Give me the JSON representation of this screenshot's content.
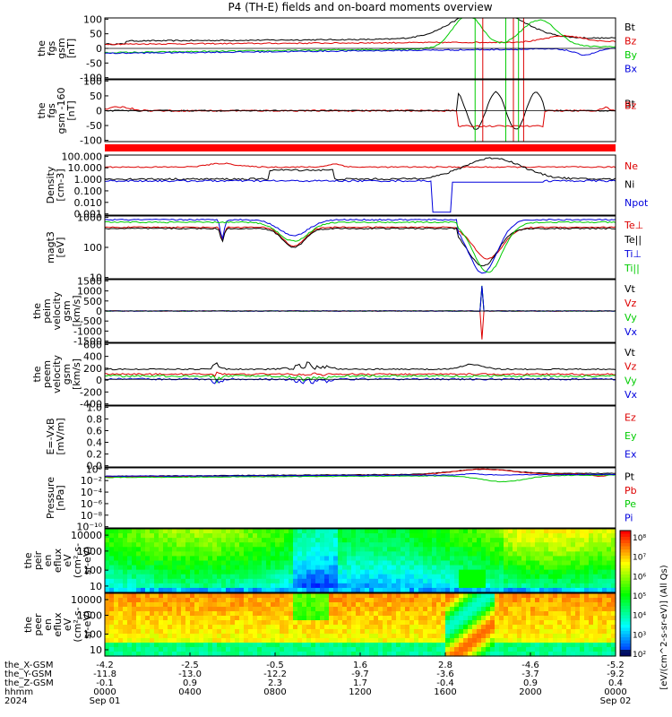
{
  "title": "P4 (TH-E) fields and on-board moments overview",
  "colors": {
    "black": "#000000",
    "red": "#dd0000",
    "green": "#00cc00",
    "blue": "#0000dd"
  },
  "chart_data": [
    {
      "type": "line",
      "id": "fgs_gsm",
      "ylabel": [
        "the",
        "fgs",
        "gsm",
        "[nT]"
      ],
      "yticks": [
        "100",
        "50",
        "0",
        "-50",
        "-100"
      ],
      "ylim": [
        -100,
        100
      ],
      "legend": [
        {
          "name": "Bt",
          "color": "black"
        },
        {
          "name": "Bz",
          "color": "red"
        },
        {
          "name": "By",
          "color": "green"
        },
        {
          "name": "Bx",
          "color": "blue"
        }
      ]
    },
    {
      "type": "line",
      "id": "fgs_gsm_160",
      "ylabel": [
        "the",
        "fgs",
        "gsm -160",
        "[nT]"
      ],
      "yticks": [
        "100",
        "50",
        "0",
        "-50",
        "-100"
      ],
      "ylim": [
        -120,
        120
      ],
      "legend": [
        {
          "name": "Bt",
          "color": "black"
        },
        {
          "name": "Bz",
          "color": "red"
        }
      ]
    },
    {
      "type": "line",
      "id": "density",
      "ylabel": [
        "Density",
        "[cm-3]"
      ],
      "yticks": [
        "100.000",
        "10.000",
        "1.000",
        "0.100",
        "0.010",
        "0.001"
      ],
      "ylim": [
        0.001,
        300
      ],
      "log": true,
      "legend": [
        {
          "name": "Ne",
          "color": "red"
        },
        {
          "name": "Ni",
          "color": "black"
        },
        {
          "name": "Npot",
          "color": "blue"
        }
      ]
    },
    {
      "type": "line",
      "id": "temperature",
      "ylabel": [
        "magt3",
        "[eV]"
      ],
      "yticks": [
        "1000",
        "100",
        "10"
      ],
      "ylim": [
        3,
        5000
      ],
      "log": true,
      "legend": [
        {
          "name": "Te⊥",
          "color": "red"
        },
        {
          "name": "Te||",
          "color": "black"
        },
        {
          "name": "Ti⊥",
          "color": "blue"
        },
        {
          "name": "Ti||",
          "color": "green"
        }
      ]
    },
    {
      "type": "line",
      "id": "peim_velocity",
      "ylabel": [
        "the",
        "peim",
        "velocity",
        "gsm",
        "[km/s]"
      ],
      "yticks": [
        "1500",
        "1000",
        "500",
        "0",
        "-500",
        "-1000",
        "-1500"
      ],
      "ylim": [
        -1700,
        1700
      ],
      "legend": [
        {
          "name": "Vt",
          "color": "black"
        },
        {
          "name": "Vz",
          "color": "red"
        },
        {
          "name": "Vy",
          "color": "green"
        },
        {
          "name": "Vx",
          "color": "blue"
        }
      ]
    },
    {
      "type": "line",
      "id": "peem_velocity",
      "ylabel": [
        "the",
        "peem",
        "velocity",
        "gsm",
        "[km/s]"
      ],
      "yticks": [
        "600",
        "400",
        "200",
        "0",
        "-200",
        "-400"
      ],
      "ylim": [
        -500,
        700
      ],
      "legend": [
        {
          "name": "Vt",
          "color": "black"
        },
        {
          "name": "Vz",
          "color": "red"
        },
        {
          "name": "Vy",
          "color": "green"
        },
        {
          "name": "Vx",
          "color": "blue"
        }
      ]
    },
    {
      "type": "line",
      "id": "efield",
      "ylabel": [
        "E=-VxB",
        "[mV/m]"
      ],
      "yticks": [
        "1.0",
        "0.8",
        "0.6",
        "0.4",
        "0.2",
        "0.0"
      ],
      "ylim": [
        0,
        1
      ],
      "legend": [
        {
          "name": "Ez",
          "color": "red"
        },
        {
          "name": "Ey",
          "color": "green"
        },
        {
          "name": "Ex",
          "color": "blue"
        }
      ]
    },
    {
      "type": "line",
      "id": "pressure",
      "ylabel": [
        "Pressure",
        "[nPa]"
      ],
      "yticks": [
        "10⁰",
        "10⁻²",
        "10⁻⁴",
        "10⁻⁶",
        "10⁻⁸",
        "10⁻¹⁰"
      ],
      "ylim": [
        1e-10,
        3
      ],
      "log": true,
      "legend": [
        {
          "name": "Pt",
          "color": "black"
        },
        {
          "name": "Pb",
          "color": "red"
        },
        {
          "name": "Pe",
          "color": "green"
        },
        {
          "name": "Pi",
          "color": "blue"
        }
      ]
    },
    {
      "type": "heatmap",
      "id": "peir_eflux",
      "ylabel": [
        "the",
        "peir",
        "en",
        "eflux",
        "eV",
        "(cm²-s-",
        "sr-eV)"
      ],
      "yticks": [
        "10000",
        "1000",
        "100",
        "10"
      ]
    },
    {
      "type": "heatmap",
      "id": "peer_eflux",
      "ylabel": [
        "the",
        "peer",
        "en",
        "eflux",
        "eV",
        "(cm²-s-",
        "sr-eV)"
      ],
      "yticks": [
        "10000",
        "1000",
        "100",
        "10"
      ]
    }
  ],
  "colorbar": {
    "label": "[eV/(cm^2-s-sr-eV)] (All Qs)",
    "ticks": [
      "10⁸",
      "10⁷",
      "10⁶",
      "10⁵",
      "10⁴",
      "10³",
      "10²"
    ]
  },
  "xaxis": {
    "row_labels": [
      "the_X-GSM",
      "the_Y-GSM",
      "the_Z-GSM",
      "hhmm",
      "2024"
    ],
    "columns": [
      {
        "x": "-4.2",
        "y": "-11.8",
        "z": "-0.1",
        "t": "0000",
        "d": "Sep 01"
      },
      {
        "x": "-2.5",
        "y": "-13.0",
        "z": "0.9",
        "t": "0400",
        "d": ""
      },
      {
        "x": "-0.5",
        "y": "-12.2",
        "z": "2.3",
        "t": "0800",
        "d": ""
      },
      {
        "x": "1.6",
        "y": "-9.7",
        "z": "1.7",
        "t": "1200",
        "d": ""
      },
      {
        "x": "2.8",
        "y": "-3.6",
        "z": "-0.4",
        "t": "1600",
        "d": ""
      },
      {
        "x": "-4.6",
        "y": "-3.7",
        "z": "0.9",
        "t": "2000",
        "d": ""
      },
      {
        "x": "-5.2",
        "y": "-9.2",
        "z": "0.4",
        "t": "0000",
        "d": "Sep 02"
      }
    ]
  }
}
